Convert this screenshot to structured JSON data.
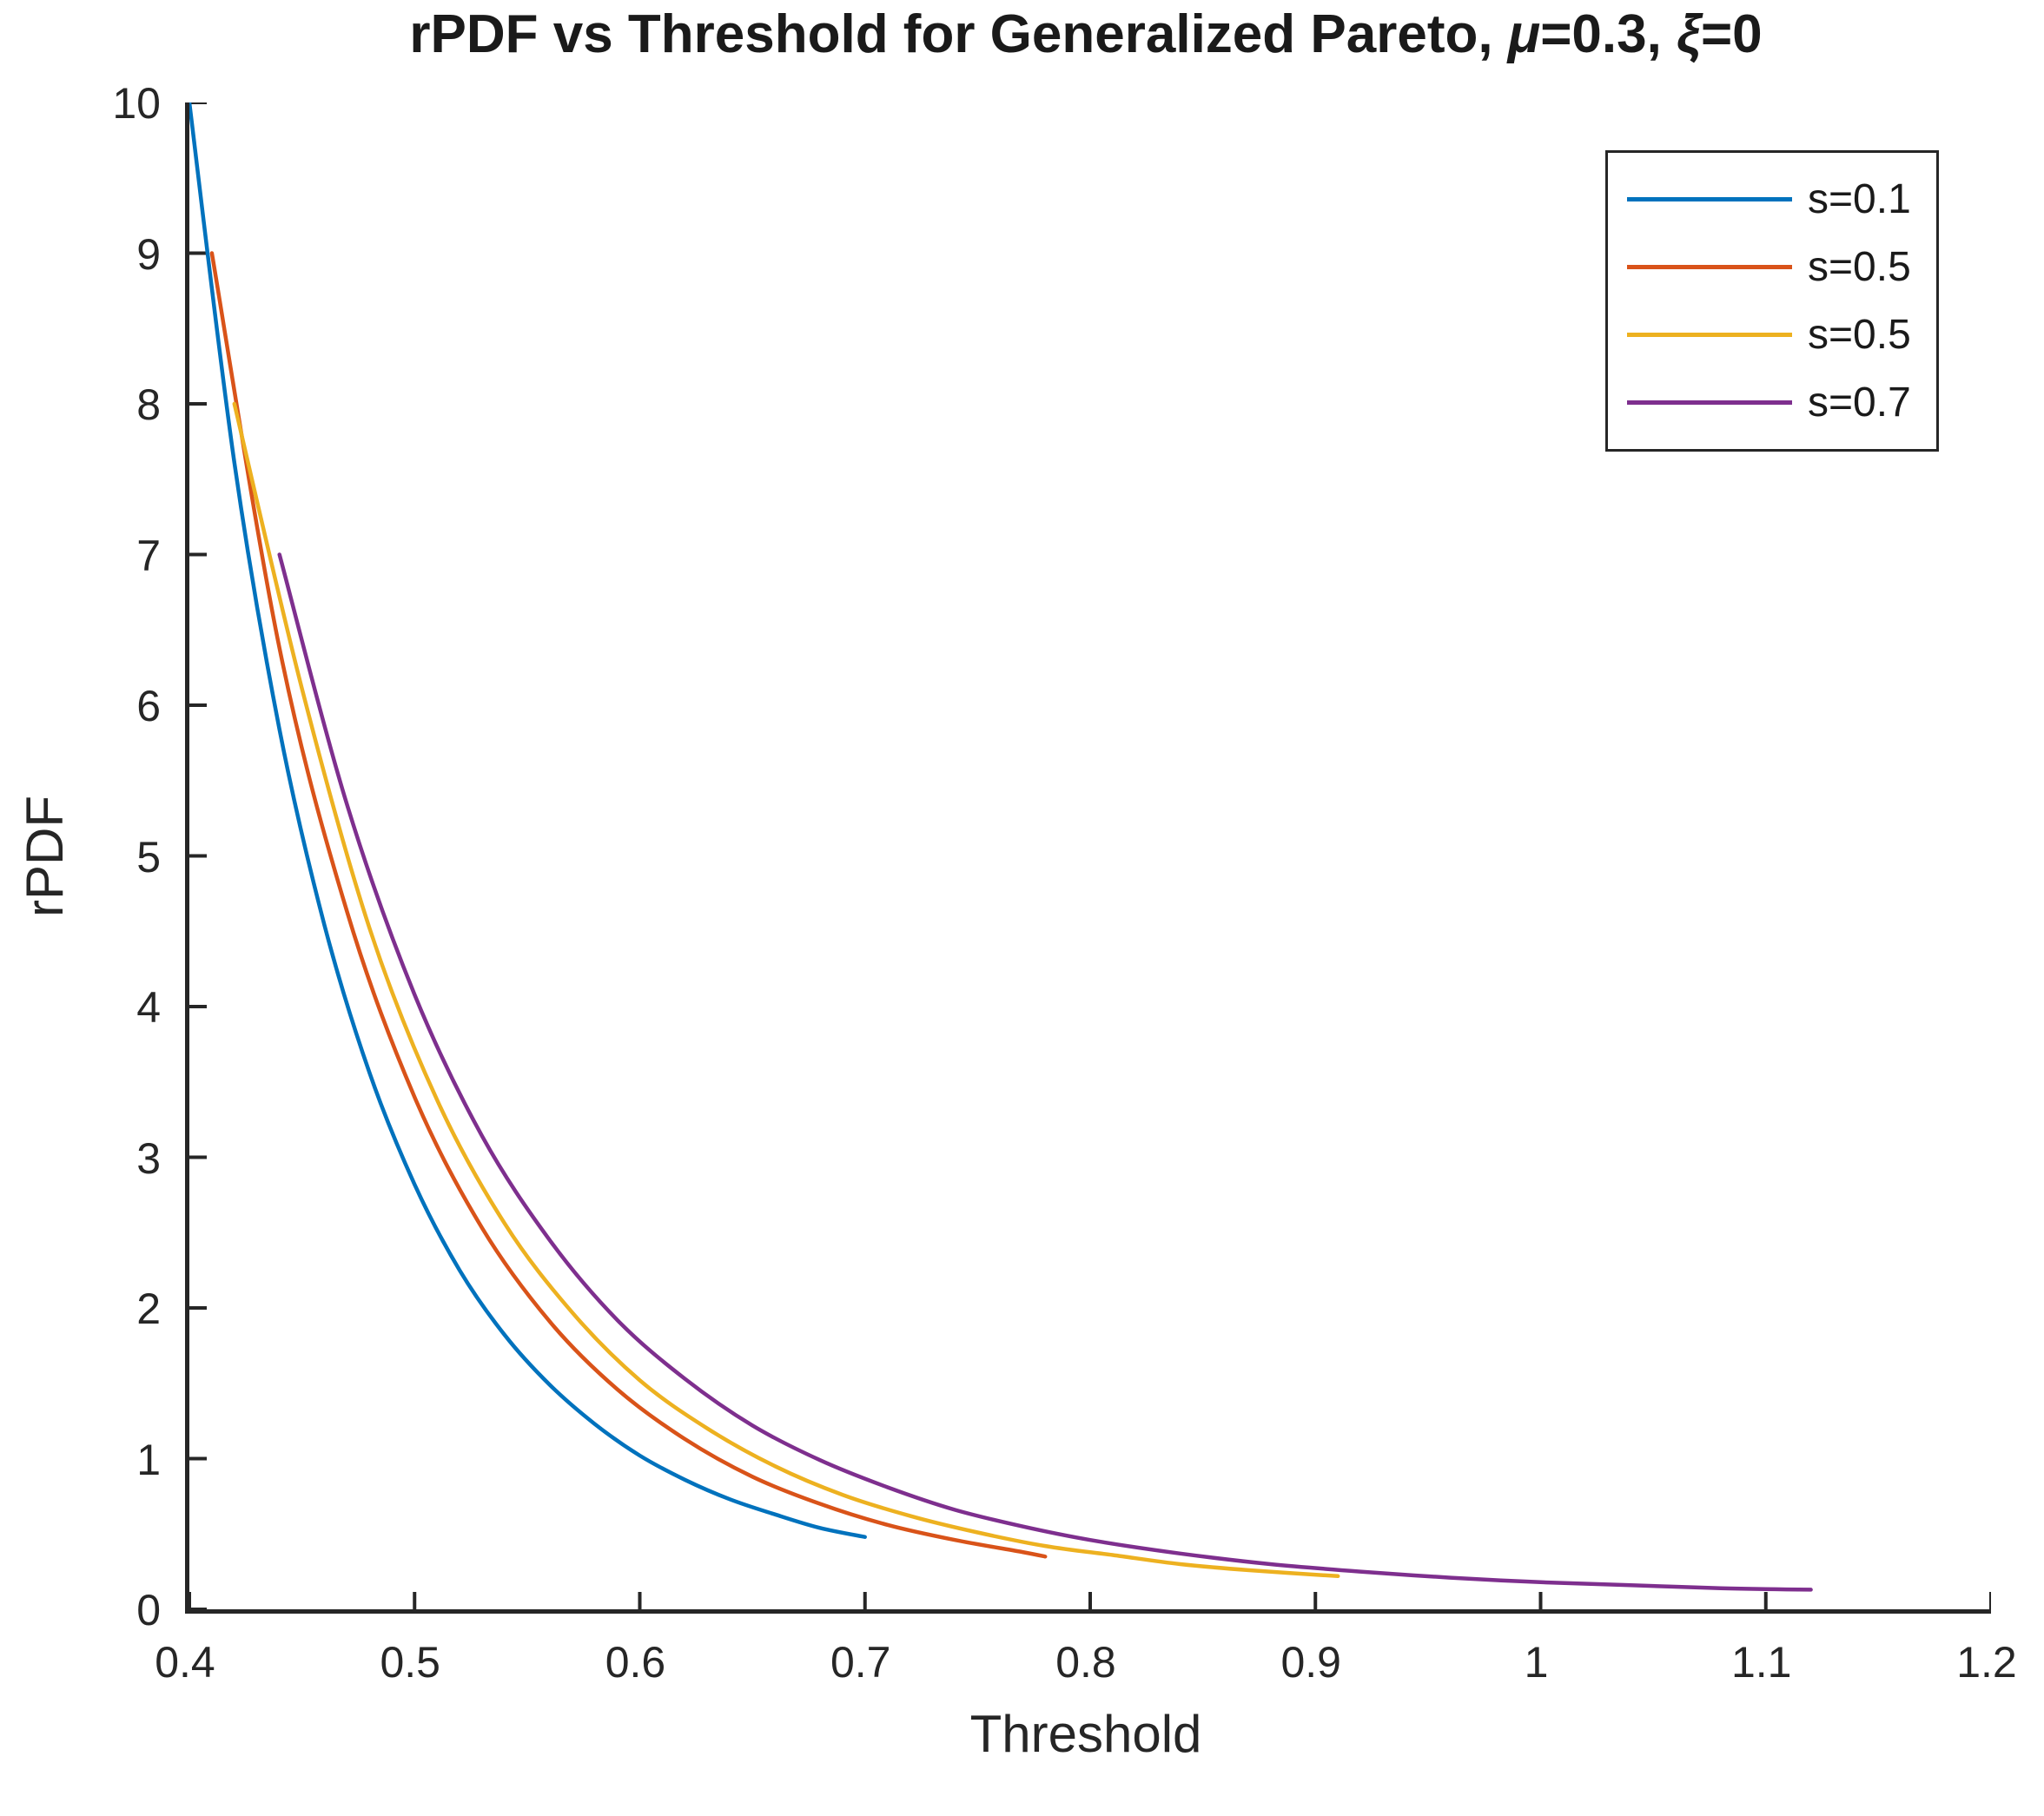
{
  "title": {
    "part1": "rPDF vs Threshold for Generalized Pareto, ",
    "mu": "μ",
    "part2": "=0.3, ",
    "xi": "ξ",
    "part3": "=0"
  },
  "colors": {
    "axis": "#262626",
    "background": "#ffffff",
    "series_blue": "#0072BD",
    "series_orange": "#D95319",
    "series_yellow": "#EDB120",
    "series_purple": "#7E2F8E"
  },
  "chart_data": {
    "type": "line",
    "title": "rPDF vs Threshold for Generalized Pareto, μ=0.3, ξ=0",
    "xlabel": "Threshold",
    "ylabel": "rPDF",
    "xlim": [
      0.4,
      1.2
    ],
    "ylim": [
      0,
      10
    ],
    "grid": false,
    "legend_position": "top-right",
    "x_ticks": {
      "values": [
        0.4,
        0.5,
        0.6,
        0.7,
        0.8,
        0.9,
        1.0,
        1.1,
        1.2
      ],
      "labels": [
        "0.4",
        "0.5",
        "0.6",
        "0.7",
        "0.8",
        "0.9",
        "1",
        "1.1",
        "1.2"
      ]
    },
    "y_ticks": {
      "values": [
        0,
        1,
        2,
        3,
        4,
        5,
        6,
        7,
        8,
        9,
        10
      ],
      "labels": [
        "0",
        "1",
        "2",
        "3",
        "4",
        "5",
        "6",
        "7",
        "8",
        "9",
        "10"
      ]
    },
    "series": [
      {
        "name": "s=0.1",
        "color": "#0072BD",
        "points": [
          [
            0.4,
            10.0
          ],
          [
            0.42,
            7.61
          ],
          [
            0.44,
            5.84
          ],
          [
            0.46,
            4.54
          ],
          [
            0.48,
            3.56
          ],
          [
            0.5,
            2.82
          ],
          [
            0.52,
            2.25
          ],
          [
            0.54,
            1.82
          ],
          [
            0.56,
            1.49
          ],
          [
            0.58,
            1.23
          ],
          [
            0.6,
            1.02
          ],
          [
            0.62,
            0.86
          ],
          [
            0.64,
            0.73
          ],
          [
            0.66,
            0.63
          ],
          [
            0.68,
            0.54
          ],
          [
            0.7,
            0.48
          ]
        ]
      },
      {
        "name": "s=0.5",
        "color": "#D95319",
        "points": [
          [
            0.41,
            9.0
          ],
          [
            0.44,
            6.38
          ],
          [
            0.47,
            4.63
          ],
          [
            0.5,
            3.4
          ],
          [
            0.53,
            2.53
          ],
          [
            0.56,
            1.91
          ],
          [
            0.59,
            1.46
          ],
          [
            0.62,
            1.13
          ],
          [
            0.65,
            0.88
          ],
          [
            0.68,
            0.7
          ],
          [
            0.71,
            0.56
          ],
          [
            0.74,
            0.46
          ],
          [
            0.77,
            0.38
          ],
          [
            0.78,
            0.35
          ]
        ]
      },
      {
        "name": "s=0.5",
        "color": "#EDB120",
        "points": [
          [
            0.42,
            8.0
          ],
          [
            0.45,
            6.11
          ],
          [
            0.48,
            4.52
          ],
          [
            0.51,
            3.38
          ],
          [
            0.54,
            2.56
          ],
          [
            0.57,
            1.97
          ],
          [
            0.6,
            1.52
          ],
          [
            0.63,
            1.2
          ],
          [
            0.66,
            0.95
          ],
          [
            0.69,
            0.76
          ],
          [
            0.72,
            0.62
          ],
          [
            0.75,
            0.51
          ],
          [
            0.78,
            0.42
          ],
          [
            0.81,
            0.36
          ],
          [
            0.84,
            0.3
          ],
          [
            0.87,
            0.26
          ],
          [
            0.91,
            0.22
          ]
        ]
      },
      {
        "name": "s=0.7",
        "color": "#7E2F8E",
        "points": [
          [
            0.44,
            7.0
          ],
          [
            0.47,
            5.34
          ],
          [
            0.5,
            4.08
          ],
          [
            0.53,
            3.14
          ],
          [
            0.56,
            2.45
          ],
          [
            0.59,
            1.92
          ],
          [
            0.62,
            1.53
          ],
          [
            0.65,
            1.22
          ],
          [
            0.68,
            0.99
          ],
          [
            0.71,
            0.81
          ],
          [
            0.74,
            0.66
          ],
          [
            0.77,
            0.55
          ],
          [
            0.8,
            0.46
          ],
          [
            0.84,
            0.37
          ],
          [
            0.88,
            0.3
          ],
          [
            0.92,
            0.25
          ],
          [
            0.96,
            0.21
          ],
          [
            1.0,
            0.18
          ],
          [
            1.04,
            0.16
          ],
          [
            1.08,
            0.14
          ],
          [
            1.12,
            0.13
          ]
        ]
      }
    ]
  }
}
